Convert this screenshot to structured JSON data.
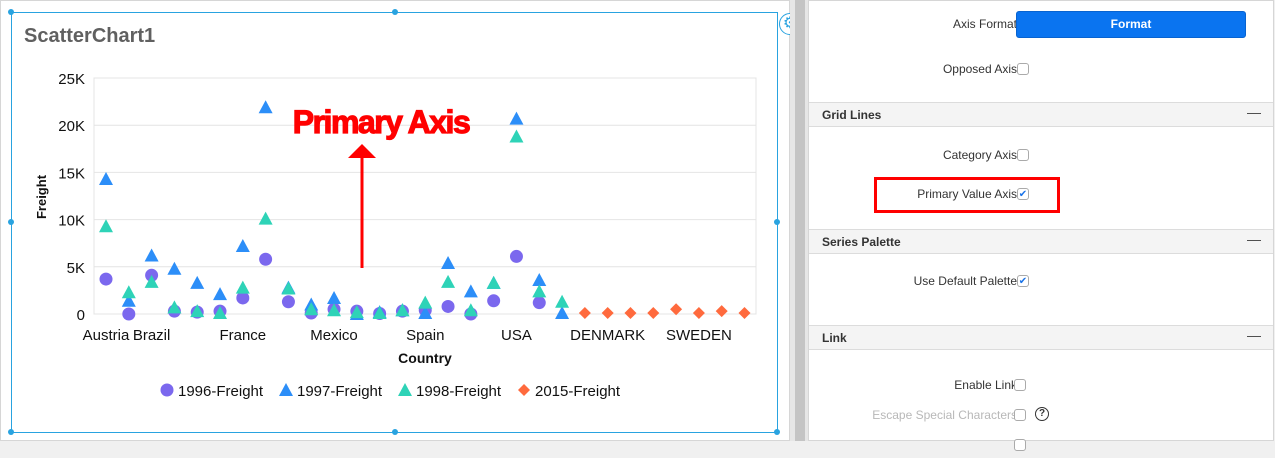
{
  "widget": {
    "title": "ScatterChart1",
    "settings_icon": "gear-icon"
  },
  "annotation": {
    "text": "Primary Axis",
    "color": "#ff0000"
  },
  "chart_data": {
    "type": "scatter",
    "xlabel": "Country",
    "ylabel": "Freight",
    "ylim": [
      0,
      25000
    ],
    "yticks": [
      "0",
      "5K",
      "10K",
      "15K",
      "20K",
      "25K"
    ],
    "grid": {
      "horizontal": true,
      "vertical": false
    },
    "legend_position": "bottom",
    "categories": [
      "Austria",
      "",
      "Brazil",
      "",
      "",
      "",
      "France",
      "",
      "",
      "",
      "Mexico",
      "",
      "",
      "",
      "Spain",
      "",
      "",
      "",
      "USA",
      "",
      "",
      "",
      "DENMARK",
      "",
      "",
      "",
      "SWEDEN",
      "",
      ""
    ],
    "series": [
      {
        "name": "1996-Freight",
        "marker": "circle",
        "color": "#7b68ee",
        "values": [
          3700,
          0,
          4100,
          300,
          200,
          300,
          1700,
          5800,
          1300,
          100,
          500,
          300,
          50,
          300,
          400,
          800,
          0,
          1400,
          6100,
          1200,
          null,
          null,
          null,
          null,
          null,
          null,
          null,
          null,
          null
        ]
      },
      {
        "name": "1997-Freight",
        "marker": "triangle",
        "color": "#2c8ef8",
        "values": [
          14300,
          1400,
          6200,
          4800,
          3300,
          2100,
          7200,
          21900,
          2800,
          1000,
          1700,
          0,
          200,
          400,
          100,
          5400,
          2400,
          3300,
          20700,
          3600,
          100,
          null,
          null,
          null,
          null,
          null,
          null,
          null,
          null
        ]
      },
      {
        "name": "1998-Freight",
        "marker": "triangle",
        "color": "#2ed3b7",
        "values": [
          9300,
          2300,
          3400,
          700,
          300,
          100,
          2800,
          10100,
          2700,
          500,
          400,
          200,
          100,
          400,
          1200,
          3400,
          400,
          3300,
          18800,
          2400,
          1300,
          null,
          null,
          null,
          null,
          null,
          null,
          null,
          null
        ]
      },
      {
        "name": "2015-Freight",
        "marker": "diamond",
        "color": "#ff6a3d",
        "values": [
          null,
          null,
          null,
          null,
          null,
          null,
          null,
          null,
          null,
          null,
          null,
          null,
          null,
          null,
          null,
          null,
          null,
          null,
          null,
          null,
          null,
          100,
          100,
          100,
          100,
          500,
          100,
          300,
          100
        ]
      }
    ]
  },
  "panel": {
    "axis_format_label": "Axis Format",
    "format_button": "Format",
    "opposed_axis_label": "Opposed Axis",
    "opposed_axis_checked": false,
    "sections": {
      "grid_lines": "Grid Lines",
      "series_palette": "Series Palette",
      "link": "Link",
      "collapse_symbol": "—"
    },
    "category_axis_label": "Category Axis",
    "category_axis_checked": false,
    "primary_value_axis_label": "Primary Value Axis",
    "primary_value_axis_checked": true,
    "use_default_palette_label": "Use Default Palette",
    "use_default_palette_checked": true,
    "enable_link_label": "Enable Link",
    "enable_link_checked": false,
    "escape_special_label": "Escape Special Characters",
    "escape_special_checked": false,
    "check_mark": "✔",
    "help_glyph": "?"
  }
}
